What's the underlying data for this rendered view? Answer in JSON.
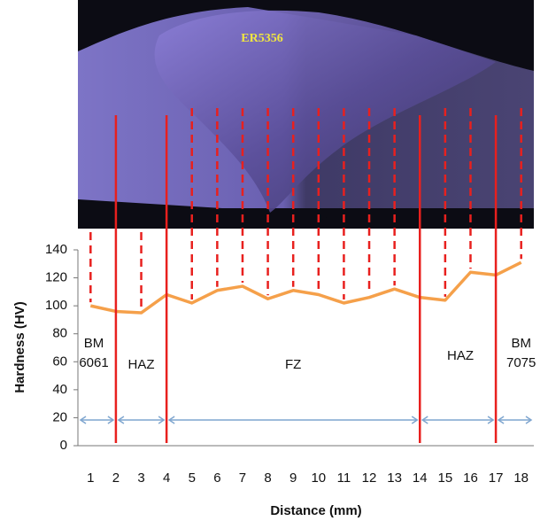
{
  "chart_data": {
    "type": "line",
    "image_label": "ER5356",
    "x_label": "Distance (mm)",
    "y_label": "Hardness (HV)",
    "x": [
      1,
      2,
      3,
      4,
      5,
      6,
      7,
      8,
      9,
      10,
      11,
      12,
      13,
      14,
      15,
      16,
      17,
      18
    ],
    "series": [
      {
        "color": "#f5a04a",
        "values": [
          100,
          96,
          95,
          108,
          102,
          111,
          114,
          105,
          111,
          108,
          102,
          106,
          112,
          106,
          104,
          124,
          122,
          131
        ]
      }
    ],
    "xlim": [
      0.5,
      18.5
    ],
    "xticks": [
      1,
      2,
      3,
      4,
      5,
      6,
      7,
      8,
      9,
      10,
      11,
      12,
      13,
      14,
      15,
      16,
      17,
      18
    ],
    "ylim": [
      0,
      140
    ],
    "yticks": [
      0,
      20,
      40,
      60,
      80,
      100,
      120,
      140
    ],
    "boundaries": [
      2,
      4,
      14,
      17
    ],
    "boundary_color": "#e8201e",
    "region_labels": [
      [
        "BM",
        "6061"
      ],
      [
        "HAZ"
      ],
      [
        "FZ"
      ],
      [
        "HAZ"
      ],
      [
        "BM",
        "7075"
      ]
    ]
  }
}
